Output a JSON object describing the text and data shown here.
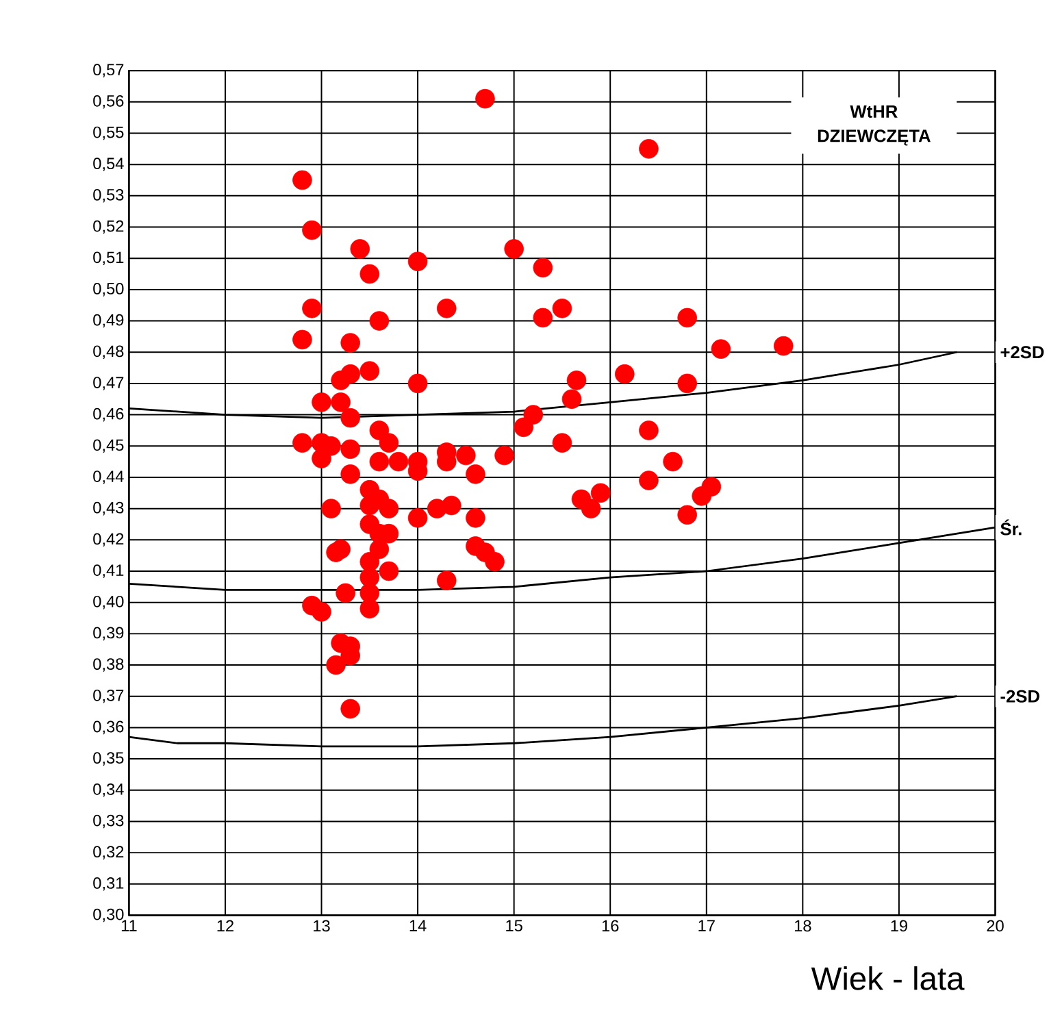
{
  "chart_data": {
    "type": "scatter",
    "title": "WtHR DZIEWCZĘTA",
    "xlabel": "Wiek - lata",
    "xlim": [
      11,
      20
    ],
    "ylim": [
      0.3,
      0.57
    ],
    "xticks": [
      11,
      12,
      13,
      14,
      15,
      16,
      17,
      18,
      19,
      20
    ],
    "yticks": [
      {
        "value": 0.3,
        "label": "0,30"
      },
      {
        "value": 0.31,
        "label": "0,31"
      },
      {
        "value": 0.32,
        "label": "0,32"
      },
      {
        "value": 0.33,
        "label": "0,33"
      },
      {
        "value": 0.34,
        "label": "0,34"
      },
      {
        "value": 0.35,
        "label": "0,35"
      },
      {
        "value": 0.36,
        "label": "0,36"
      },
      {
        "value": 0.37,
        "label": "0,37"
      },
      {
        "value": 0.38,
        "label": "0,38"
      },
      {
        "value": 0.39,
        "label": "0,39"
      },
      {
        "value": 0.4,
        "label": "0,40"
      },
      {
        "value": 0.41,
        "label": "0,41"
      },
      {
        "value": 0.42,
        "label": "0,42"
      },
      {
        "value": 0.43,
        "label": "0,43"
      },
      {
        "value": 0.44,
        "label": "0,44"
      },
      {
        "value": 0.45,
        "label": "0,45"
      },
      {
        "value": 0.46,
        "label": "0,46"
      },
      {
        "value": 0.47,
        "label": "0,47"
      },
      {
        "value": 0.48,
        "label": "0,48"
      },
      {
        "value": 0.49,
        "label": "0,49"
      },
      {
        "value": 0.5,
        "label": "0,50"
      },
      {
        "value": 0.51,
        "label": "0,51"
      },
      {
        "value": 0.52,
        "label": "0,52"
      },
      {
        "value": 0.53,
        "label": "0,53"
      },
      {
        "value": 0.54,
        "label": "0,54"
      },
      {
        "value": 0.55,
        "label": "0,55"
      },
      {
        "value": 0.56,
        "label": "0,56"
      },
      {
        "value": 0.57,
        "label": "0,57"
      }
    ],
    "grid": true,
    "legend": false,
    "series": [
      {
        "color": "#ff0000",
        "marker": "circle",
        "x": [
          12.8,
          12.9,
          12.9,
          12.8,
          12.8,
          13.0,
          13.0,
          13.0,
          13.2,
          13.3,
          13.5,
          13.2,
          13.3,
          13.1,
          13.3,
          13.3,
          13.1,
          13.3,
          13.4,
          13.5,
          13.6,
          13.6,
          13.7,
          13.6,
          13.8,
          13.5,
          13.6,
          13.5,
          13.7,
          13.5,
          13.6,
          13.7,
          13.2,
          13.15,
          13.6,
          13.5,
          13.5,
          13.7,
          13.5,
          13.5,
          13.25,
          12.9,
          13.0,
          13.2,
          13.3,
          13.3,
          13.15,
          13.3,
          14.0,
          14.3,
          14.0,
          14.0,
          14.0,
          14.3,
          14.3,
          14.5,
          14.6,
          14.2,
          14.35,
          14.0,
          14.6,
          14.6,
          14.7,
          14.8,
          14.3,
          14.7,
          14.9,
          15.0,
          15.3,
          15.3,
          15.5,
          15.1,
          15.2,
          15.5,
          15.65,
          15.6,
          15.7,
          15.8,
          15.9,
          16.15,
          16.4,
          16.4,
          16.4,
          16.65,
          16.8,
          16.8,
          16.8,
          16.95,
          17.05,
          17.15,
          17.8
        ],
        "values": [
          0.535,
          0.519,
          0.494,
          0.484,
          0.451,
          0.451,
          0.446,
          0.464,
          0.471,
          0.473,
          0.474,
          0.464,
          0.459,
          0.45,
          0.449,
          0.441,
          0.43,
          0.483,
          0.513,
          0.505,
          0.49,
          0.455,
          0.451,
          0.445,
          0.445,
          0.436,
          0.433,
          0.431,
          0.43,
          0.425,
          0.422,
          0.422,
          0.417,
          0.416,
          0.417,
          0.413,
          0.408,
          0.41,
          0.403,
          0.398,
          0.403,
          0.399,
          0.397,
          0.387,
          0.386,
          0.383,
          0.38,
          0.366,
          0.509,
          0.494,
          0.47,
          0.445,
          0.442,
          0.448,
          0.445,
          0.447,
          0.441,
          0.43,
          0.431,
          0.427,
          0.427,
          0.418,
          0.416,
          0.413,
          0.407,
          0.561,
          0.447,
          0.513,
          0.507,
          0.491,
          0.494,
          0.456,
          0.46,
          0.451,
          0.471,
          0.465,
          0.433,
          0.43,
          0.435,
          0.473,
          0.455,
          0.439,
          0.545,
          0.445,
          0.491,
          0.47,
          0.428,
          0.434,
          0.437,
          0.481,
          0.482
        ]
      },
      {
        "type": "line",
        "name": "+2SD",
        "color": "#000000",
        "marker": "none",
        "x": [
          11,
          12,
          13,
          14,
          15,
          16,
          17,
          18,
          19,
          19.6
        ],
        "values": [
          0.462,
          0.46,
          0.459,
          0.46,
          0.461,
          0.464,
          0.467,
          0.471,
          0.476,
          0.48
        ]
      },
      {
        "type": "line",
        "name": "Śr.",
        "color": "#000000",
        "marker": "none",
        "x": [
          11,
          12,
          13,
          14,
          15,
          16,
          17,
          18,
          19,
          20
        ],
        "values": [
          0.406,
          0.404,
          0.404,
          0.404,
          0.405,
          0.408,
          0.41,
          0.414,
          0.419,
          0.424
        ]
      },
      {
        "type": "line",
        "name": "-2SD",
        "color": "#000000",
        "marker": "none",
        "x": [
          11,
          11.5,
          12,
          13,
          14,
          15,
          16,
          17,
          18,
          19,
          19.6
        ],
        "values": [
          0.357,
          0.355,
          0.355,
          0.354,
          0.354,
          0.355,
          0.357,
          0.36,
          0.363,
          0.367,
          0.37
        ]
      }
    ]
  }
}
